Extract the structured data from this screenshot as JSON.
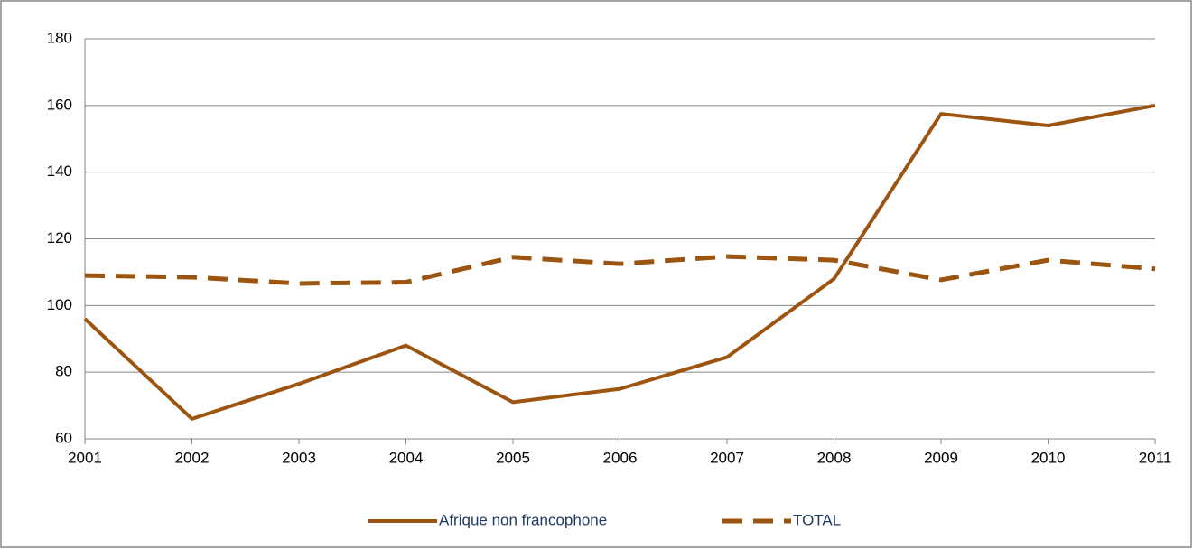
{
  "chart_data": {
    "type": "line",
    "categories": [
      "2001",
      "2002",
      "2003",
      "2004",
      "2005",
      "2006",
      "2007",
      "2008",
      "2009",
      "2010",
      "2011"
    ],
    "series": [
      {
        "name": "Afrique non francophone",
        "color": "#9c5511",
        "style": "solid",
        "values": [
          96,
          66,
          76.5,
          88,
          71,
          75,
          84.5,
          108,
          157.5,
          154,
          160
        ]
      },
      {
        "name": "TOTAL",
        "color": "#9c5511",
        "style": "dashed",
        "values": [
          109,
          108.5,
          106.6,
          107,
          114.5,
          112.5,
          114.7,
          113.6,
          107.7,
          113.6,
          111
        ]
      }
    ],
    "ylim": [
      60,
      180
    ],
    "yticks": [
      60,
      80,
      100,
      120,
      140,
      160,
      180
    ],
    "grid": true,
    "legend": "bottom"
  }
}
